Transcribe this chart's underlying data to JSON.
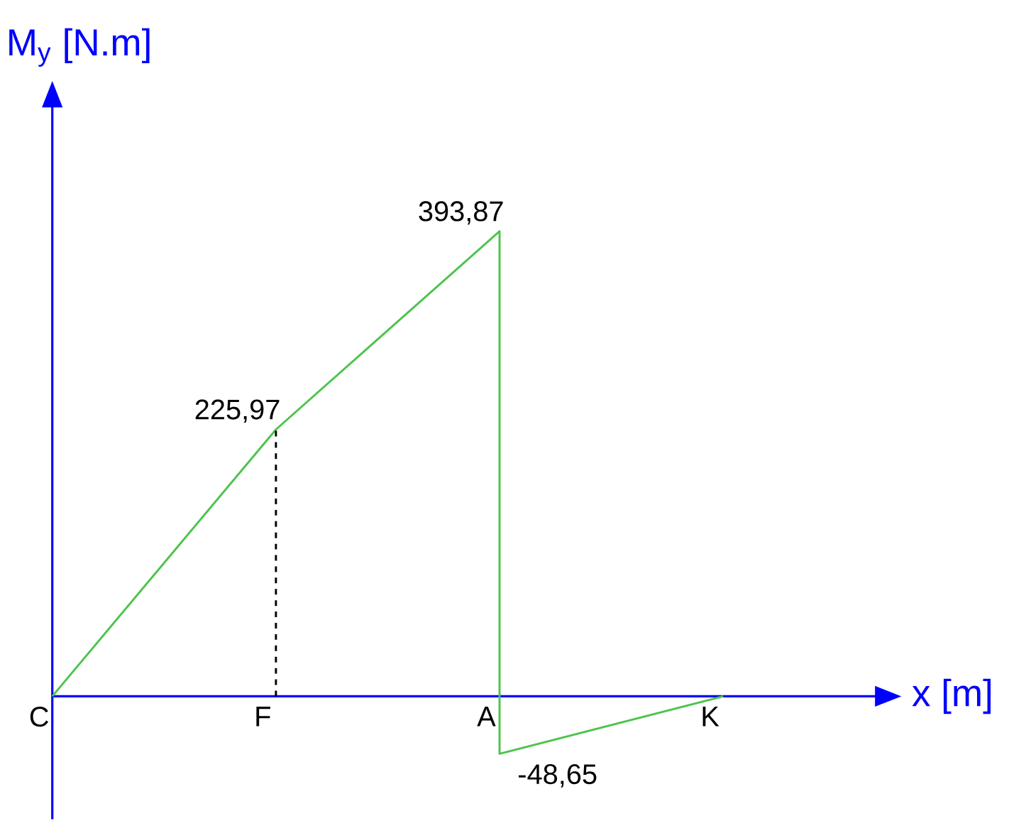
{
  "chart_data": {
    "type": "line",
    "xlabel": "x [m]",
    "ylabel": "M$_{y}$ [N.m]",
    "categories": [
      "C",
      "F",
      "A",
      "K"
    ],
    "tick_labels": "x",
    "marker": "none",
    "series": [
      {
        "color": "#4cc44c",
        "line_style": "solid",
        "x": [
          "C",
          "F",
          "A",
          "A",
          "K"
        ],
        "values": [
          0,
          225.97,
          393.87,
          -48.65,
          0
        ],
        "value_labels": [
          null,
          "225,97",
          "393,87",
          "-48,65",
          null
        ]
      },
      {
        "color": "#000000",
        "line_style": "dashed",
        "x": [
          "F",
          "F"
        ],
        "values": [
          0,
          225.97
        ]
      }
    ]
  }
}
